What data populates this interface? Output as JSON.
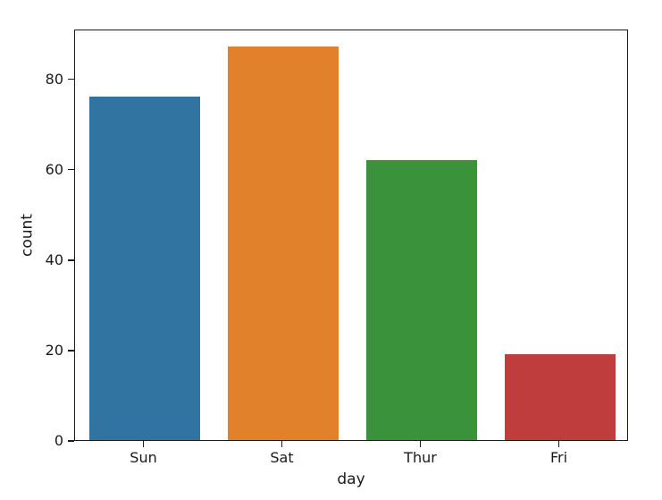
{
  "chart_data": {
    "type": "bar",
    "title": "",
    "categories": [
      "Sun",
      "Sat",
      "Thur",
      "Fri"
    ],
    "values": [
      76,
      87,
      62,
      19
    ],
    "bar_colors": [
      "#3274a1",
      "#e1812c",
      "#3a923a",
      "#c03d3e"
    ],
    "xlabel": "day",
    "ylabel": "count",
    "ylim": [
      0,
      91
    ],
    "yticks": [
      0,
      20,
      40,
      60,
      80
    ],
    "grid": false,
    "legend_position": "none",
    "spine_color": "#1c1c1c",
    "text_color": "#1a1a1a",
    "background_color": "#ffffff"
  }
}
